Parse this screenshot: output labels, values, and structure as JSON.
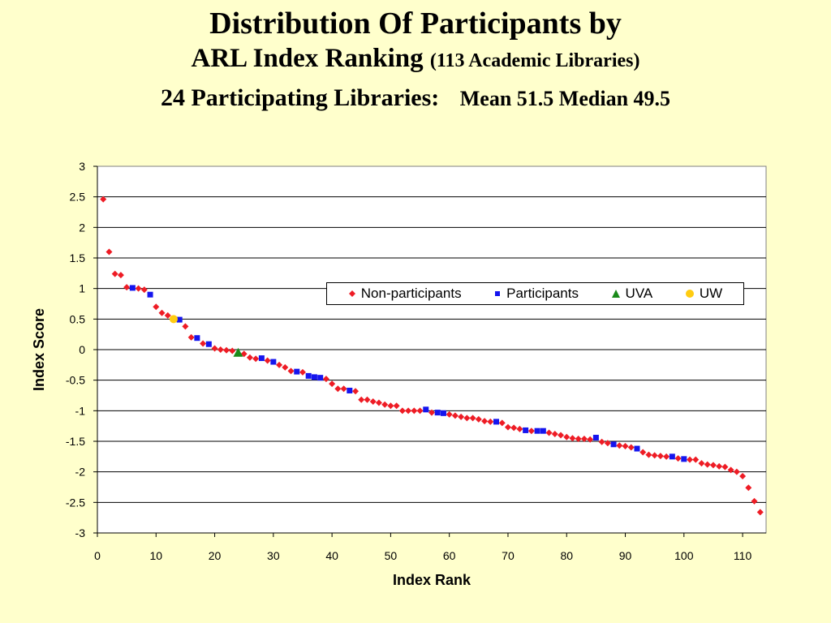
{
  "title": {
    "line1": "Distribution Of Participants by",
    "line2_main": "ARL Index Ranking",
    "line2_sub": "(113 Academic Libraries)",
    "line3_main": "24 Participating Libraries:",
    "line3_stats": "Mean 51.5 Median 49.5"
  },
  "chart_data": {
    "type": "scatter",
    "xlabel": "Index Rank",
    "ylabel": "Index Score",
    "xlim": [
      0,
      114
    ],
    "ylim": [
      -3,
      3
    ],
    "xticks": [
      0,
      10,
      20,
      30,
      40,
      50,
      60,
      70,
      80,
      90,
      100,
      110
    ],
    "yticks": [
      3,
      2.5,
      2,
      1.5,
      1,
      0.5,
      0,
      -0.5,
      -1,
      -1.5,
      -2,
      -2.5,
      -3
    ],
    "grid": "horizontal",
    "legend_position": "upper-right",
    "series": [
      {
        "name": "Non-participants",
        "marker": "diamond",
        "color": "#ee1c25",
        "points": [
          [
            1,
            2.46
          ],
          [
            2,
            1.6
          ],
          [
            3,
            1.24
          ],
          [
            4,
            1.22
          ],
          [
            5,
            1.02
          ],
          [
            7,
            1.0
          ],
          [
            8,
            0.98
          ],
          [
            10,
            0.7
          ],
          [
            11,
            0.6
          ],
          [
            12,
            0.56
          ],
          [
            15,
            0.38
          ],
          [
            16,
            0.2
          ],
          [
            18,
            0.1
          ],
          [
            20,
            0.02
          ],
          [
            21,
            0.0
          ],
          [
            22,
            -0.01
          ],
          [
            23,
            -0.02
          ],
          [
            25,
            -0.07
          ],
          [
            26,
            -0.13
          ],
          [
            27,
            -0.15
          ],
          [
            29,
            -0.18
          ],
          [
            31,
            -0.25
          ],
          [
            32,
            -0.29
          ],
          [
            33,
            -0.35
          ],
          [
            35,
            -0.37
          ],
          [
            39,
            -0.48
          ],
          [
            40,
            -0.56
          ],
          [
            41,
            -0.64
          ],
          [
            42,
            -0.64
          ],
          [
            44,
            -0.68
          ],
          [
            45,
            -0.82
          ],
          [
            46,
            -0.82
          ],
          [
            47,
            -0.85
          ],
          [
            48,
            -0.87
          ],
          [
            49,
            -0.9
          ],
          [
            50,
            -0.92
          ],
          [
            51,
            -0.92
          ],
          [
            52,
            -1.0
          ],
          [
            53,
            -1.0
          ],
          [
            54,
            -1.0
          ],
          [
            55,
            -1.0
          ],
          [
            57,
            -1.03
          ],
          [
            60,
            -1.06
          ],
          [
            61,
            -1.08
          ],
          [
            62,
            -1.1
          ],
          [
            63,
            -1.12
          ],
          [
            64,
            -1.12
          ],
          [
            65,
            -1.14
          ],
          [
            66,
            -1.17
          ],
          [
            67,
            -1.18
          ],
          [
            69,
            -1.2
          ],
          [
            70,
            -1.27
          ],
          [
            71,
            -1.28
          ],
          [
            72,
            -1.3
          ],
          [
            74,
            -1.33
          ],
          [
            77,
            -1.36
          ],
          [
            78,
            -1.38
          ],
          [
            79,
            -1.4
          ],
          [
            80,
            -1.43
          ],
          [
            81,
            -1.45
          ],
          [
            82,
            -1.46
          ],
          [
            83,
            -1.46
          ],
          [
            84,
            -1.47
          ],
          [
            86,
            -1.51
          ],
          [
            87,
            -1.53
          ],
          [
            89,
            -1.57
          ],
          [
            90,
            -1.58
          ],
          [
            91,
            -1.6
          ],
          [
            93,
            -1.68
          ],
          [
            94,
            -1.72
          ],
          [
            95,
            -1.73
          ],
          [
            96,
            -1.74
          ],
          [
            97,
            -1.75
          ],
          [
            99,
            -1.78
          ],
          [
            101,
            -1.8
          ],
          [
            102,
            -1.8
          ],
          [
            103,
            -1.86
          ],
          [
            104,
            -1.88
          ],
          [
            105,
            -1.89
          ],
          [
            106,
            -1.91
          ],
          [
            107,
            -1.92
          ],
          [
            108,
            -1.97
          ],
          [
            109,
            -2.0
          ],
          [
            110,
            -2.07
          ],
          [
            111,
            -2.26
          ],
          [
            112,
            -2.48
          ],
          [
            113,
            -2.66
          ]
        ]
      },
      {
        "name": "Participants",
        "marker": "square",
        "color": "#1515ee",
        "points": [
          [
            6,
            1.01
          ],
          [
            9,
            0.9
          ],
          [
            14,
            0.49
          ],
          [
            17,
            0.19
          ],
          [
            19,
            0.09
          ],
          [
            28,
            -0.14
          ],
          [
            30,
            -0.2
          ],
          [
            34,
            -0.36
          ],
          [
            36,
            -0.43
          ],
          [
            37,
            -0.45
          ],
          [
            38,
            -0.46
          ],
          [
            43,
            -0.67
          ],
          [
            56,
            -0.98
          ],
          [
            58,
            -1.03
          ],
          [
            59,
            -1.04
          ],
          [
            68,
            -1.18
          ],
          [
            73,
            -1.32
          ],
          [
            75,
            -1.33
          ],
          [
            76,
            -1.33
          ],
          [
            85,
            -1.44
          ],
          [
            88,
            -1.55
          ],
          [
            92,
            -1.62
          ],
          [
            98,
            -1.75
          ],
          [
            100,
            -1.79
          ]
        ]
      },
      {
        "name": "UVA",
        "marker": "triangle",
        "color": "#1a8a1a",
        "points": [
          [
            24,
            -0.05
          ]
        ]
      },
      {
        "name": "UW",
        "marker": "circle",
        "color": "#ffcc11",
        "points": [
          [
            13,
            0.5
          ]
        ]
      }
    ]
  }
}
